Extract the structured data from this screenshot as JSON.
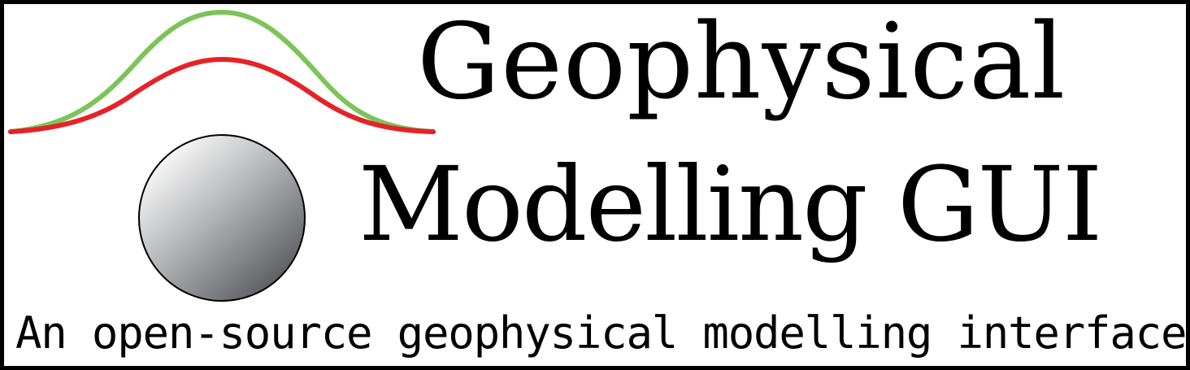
{
  "logo": {
    "title_line_1": "Geophysical",
    "title_line_2": "Modelling GUI",
    "tagline": "An open-source geophysical modelling interface"
  },
  "colors": {
    "observed_curve": "#7cc45a",
    "calculated_curve": "#e52327",
    "border": "#000000",
    "text": "#000000",
    "background": "#ffffff"
  },
  "icons": {
    "observed_anomaly": "green-anomaly-curve-icon",
    "calculated_anomaly": "red-anomaly-curve-icon",
    "buried_body": "sphere-icon"
  }
}
